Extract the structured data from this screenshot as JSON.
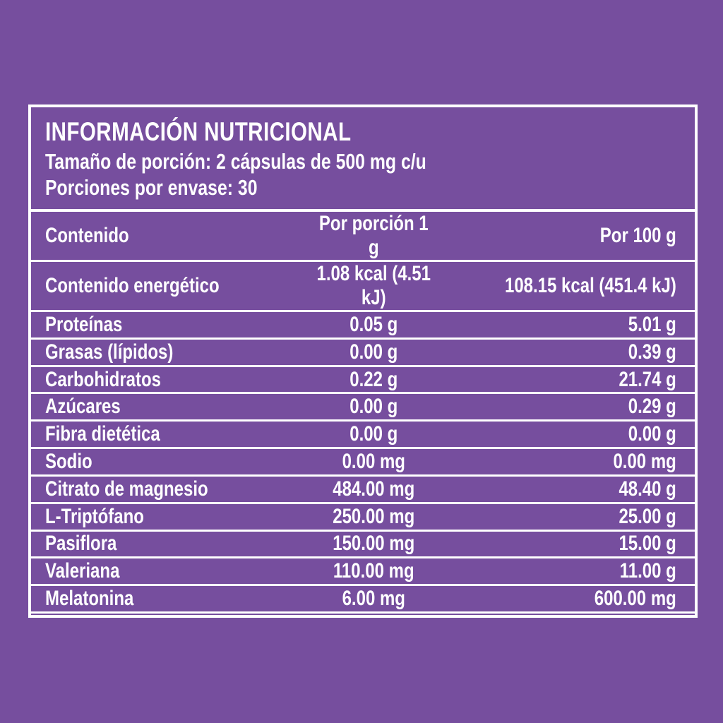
{
  "colors": {
    "background": "#764E9E",
    "lines": "#FFFFFF",
    "text": "#FFFFFF"
  },
  "label": {
    "title": "INFORMACIÓN NUTRICIONAL",
    "serving_size": "Tamaño de porción: 2 cápsulas de 500 mg c/u",
    "servings_per_container": "Porciones por envase: 30"
  },
  "table": {
    "headers": [
      "Contenido",
      "Por porción 1 g",
      "Por 100 g"
    ],
    "rows": [
      {
        "name": "Contenido energético",
        "per_portion": "1.08 kcal (4.51 kJ)",
        "per_100": "108.15 kcal (451.4 kJ)"
      },
      {
        "name": "Proteínas",
        "per_portion": "0.05 g",
        "per_100": "5.01 g"
      },
      {
        "name": "Grasas (lípidos)",
        "per_portion": "0.00 g",
        "per_100": "0.39 g"
      },
      {
        "name": "Carbohidratos",
        "per_portion": "0.22 g",
        "per_100": "21.74 g"
      },
      {
        "name": "Azúcares",
        "per_portion": "0.00 g",
        "per_100": "0.29 g"
      },
      {
        "name": "Fibra dietética",
        "per_portion": "0.00 g",
        "per_100": "0.00 g"
      },
      {
        "name": "Sodio",
        "per_portion": "0.00 mg",
        "per_100": "0.00 mg"
      },
      {
        "name": "Citrato de magnesio",
        "per_portion": "484.00 mg",
        "per_100": "48.40 g"
      },
      {
        "name": "L-Triptófano",
        "per_portion": "250.00 mg",
        "per_100": "25.00 g"
      },
      {
        "name": "Pasiflora",
        "per_portion": "150.00 mg",
        "per_100": "15.00 g"
      },
      {
        "name": "Valeriana",
        "per_portion": "110.00 mg",
        "per_100": "11.00 g"
      },
      {
        "name": "Melatonina",
        "per_portion": "6.00 mg",
        "per_100": "600.00 mg"
      }
    ]
  }
}
